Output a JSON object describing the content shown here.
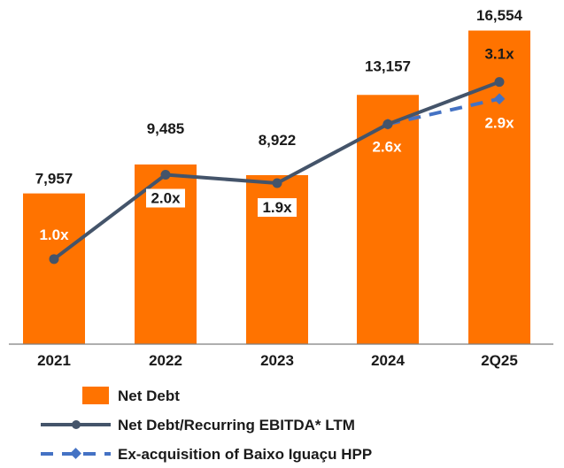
{
  "chart_data": {
    "type": "bar",
    "title": "",
    "xlabel": "",
    "ylabel": "",
    "ylim": [
      0,
      17700
    ],
    "categories": [
      "2021",
      "2022",
      "2023",
      "2024",
      "2Q25"
    ],
    "series": [
      {
        "name": "Net Debt",
        "type": "bar",
        "values": [
          7957,
          9485,
          8922,
          13157,
          16554
        ],
        "labels": [
          "7,957",
          "9,485",
          "8,922",
          "13,157",
          "16,554"
        ]
      },
      {
        "name": "Net Debt/Recurring EBITDA* LTM",
        "type": "line",
        "values": [
          1.0,
          2.0,
          1.9,
          2.6,
          3.1
        ],
        "labels": [
          "1.0x",
          "2.0x",
          "1.9x",
          "2.6x",
          "3.1x"
        ]
      },
      {
        "name": "Ex-acquisition of Baixo Iguaçu HPP",
        "type": "line",
        "style": "dashed",
        "values": [
          null,
          null,
          null,
          2.6,
          2.9
        ],
        "labels": [
          "",
          "",
          "",
          "",
          "2.9x"
        ]
      }
    ],
    "legend_position": "bottom",
    "colors": {
      "bar": "#ff7300",
      "line": "#44546a",
      "dashed": "#4472c4",
      "axis": "#7f7f7f"
    }
  }
}
